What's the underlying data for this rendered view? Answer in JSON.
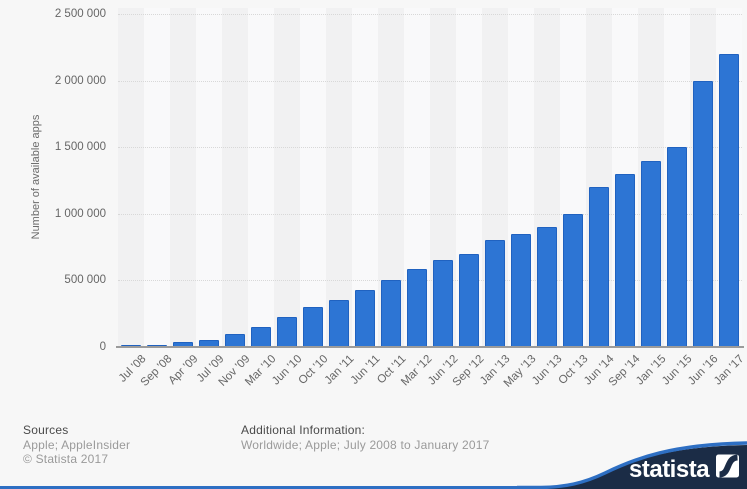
{
  "chart_data": {
    "type": "bar",
    "ylabel": "Number of available apps",
    "xlabel": "",
    "ylim": [
      0,
      2500000
    ],
    "grid": "horizontal-dotted",
    "legend": "none",
    "yticks": [
      {
        "value": 0,
        "label": "0"
      },
      {
        "value": 500000,
        "label": "500 000"
      },
      {
        "value": 1000000,
        "label": "1 000 000"
      },
      {
        "value": 1500000,
        "label": "1 500 000"
      },
      {
        "value": 2000000,
        "label": "2 000 000"
      },
      {
        "value": 2500000,
        "label": "2 500 000"
      }
    ],
    "categories": [
      "Jul '08",
      "Sep '08",
      "Apr '09",
      "Jul '09",
      "Nov '09",
      "Mar '10",
      "Jun '10",
      "Oct '10",
      "Jan '11",
      "Jun '11",
      "Oct '11",
      "Mar '12",
      "Jun '12",
      "Sep '12",
      "Jan '13",
      "May '13",
      "Jun '13",
      "Oct '13",
      "Jun '14",
      "Sep '14",
      "Jan '15",
      "Jun '15",
      "Jun '16",
      "Jan '17"
    ],
    "values": [
      500,
      3000,
      35000,
      55000,
      100000,
      150000,
      225000,
      300000,
      350000,
      425000,
      500000,
      585000,
      650000,
      700000,
      800000,
      850000,
      900000,
      1000000,
      1200000,
      1300000,
      1400000,
      1500000,
      2000000,
      2200000
    ],
    "colors": {
      "bar_fill": "#2d75d4",
      "bar_border": "#2062c0",
      "band_even": "#f1f1f2",
      "band_odd": "#f9f9fa",
      "gridline": "#d8d8d8",
      "axis_line": "#9b9b9b",
      "tick_text": "#666666"
    }
  },
  "footer": {
    "sources_heading": "Sources",
    "sources_line1": "Apple; AppleInsider",
    "sources_line2": "© Statista 2017",
    "additional_heading": "Additional Information:",
    "additional_line1": "Worldwide; Apple; July 2008 to January 2017"
  },
  "branding": {
    "logo_text": "statista",
    "navy": "#1b2c46",
    "accent_blue": "#2e6fc3"
  }
}
